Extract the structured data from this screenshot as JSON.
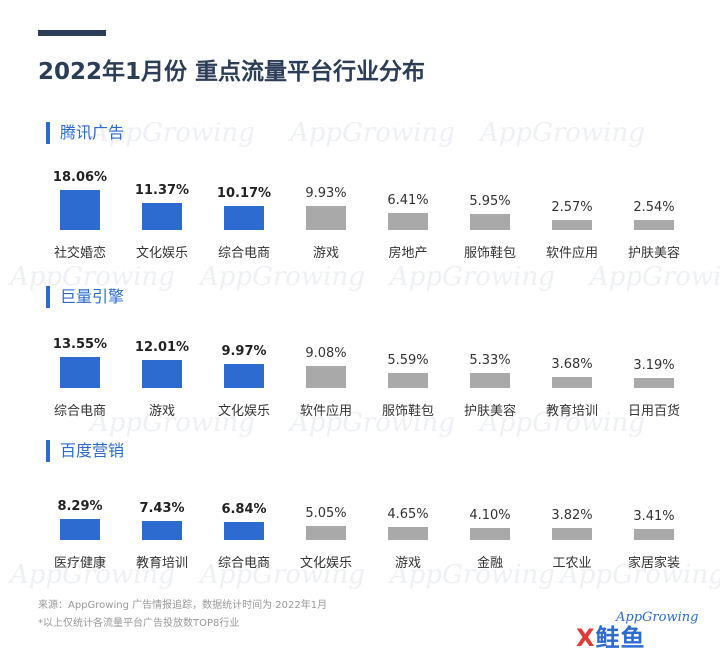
{
  "title": "2022年1月份 重点流量平台行业分布",
  "watermark": "AppGrowing",
  "colors": {
    "highlight": "#2e6bd1",
    "normal": "#a9a9a9",
    "title": "#2b3d57"
  },
  "chart_data": [
    {
      "type": "bar",
      "title": "腾讯广告",
      "categories": [
        "社交婚恋",
        "文化娱乐",
        "综合电商",
        "游戏",
        "房地产",
        "服饰鞋包",
        "软件应用",
        "护肤美容"
      ],
      "values": [
        18.06,
        11.37,
        10.17,
        9.93,
        6.41,
        5.95,
        2.57,
        2.54
      ],
      "labels": [
        "18.06%",
        "11.37%",
        "10.17%",
        "9.93%",
        "6.41%",
        "5.95%",
        "2.57%",
        "2.54%"
      ],
      "highlight_count": 3
    },
    {
      "type": "bar",
      "title": "巨量引擎",
      "categories": [
        "综合电商",
        "游戏",
        "文化娱乐",
        "软件应用",
        "服饰鞋包",
        "护肤美容",
        "教育培训",
        "日用百货"
      ],
      "values": [
        13.55,
        12.01,
        9.97,
        9.08,
        5.59,
        5.33,
        3.68,
        3.19
      ],
      "labels": [
        "13.55%",
        "12.01%",
        "9.97%",
        "9.08%",
        "5.59%",
        "5.33%",
        "3.68%",
        "3.19%"
      ],
      "highlight_count": 3
    },
    {
      "type": "bar",
      "title": "百度营销",
      "categories": [
        "医疗健康",
        "教育培训",
        "综合电商",
        "文化娱乐",
        "游戏",
        "金融",
        "工农业",
        "家居家装"
      ],
      "values": [
        8.29,
        7.43,
        6.84,
        5.05,
        4.65,
        4.1,
        3.82,
        3.41
      ],
      "labels": [
        "8.29%",
        "7.43%",
        "6.84%",
        "5.05%",
        "4.65%",
        "4.10%",
        "3.82%",
        "3.41%"
      ],
      "highlight_count": 3
    }
  ],
  "footer": {
    "source": "来源：AppGrowing  广告情报追踪，数据统计时间为  2022年1月",
    "note": "*以上仅统计各流量平台广告投放数TOP8行业"
  },
  "logo": {
    "app_text": "AppGrowing",
    "cn_first": "X",
    "cn_rest": "鲑鱼"
  }
}
